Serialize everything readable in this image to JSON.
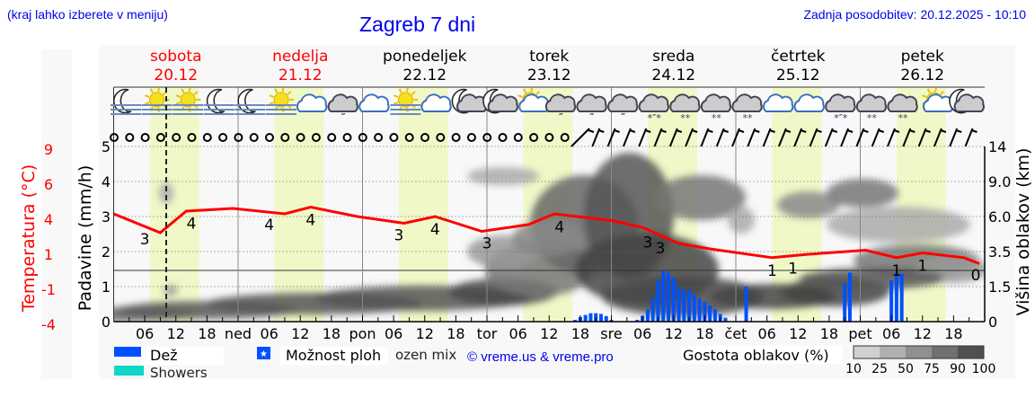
{
  "header": {
    "location_hint": "(kraj lahko izberete v meniju)",
    "title": "Zagreb 7 dni",
    "updated": "Zadnja posodobitev: 20.12.2025 - 10:10"
  },
  "days": [
    {
      "name": "sobota",
      "date": "20.12",
      "weekend": true
    },
    {
      "name": "nedelja",
      "date": "21.12",
      "weekend": true
    },
    {
      "name": "ponedeljek",
      "date": "22.12",
      "weekend": false
    },
    {
      "name": "torek",
      "date": "23.12",
      "weekend": false
    },
    {
      "name": "sreda",
      "date": "24.12",
      "weekend": false
    },
    {
      "name": "četrtek",
      "date": "25.12",
      "weekend": false
    },
    {
      "name": "petek",
      "date": "26.12",
      "weekend": false
    }
  ],
  "colors": {
    "temperature": "#ff0000",
    "rain": "#0050ff",
    "showers": "#10d8c8",
    "daylight": "#f0f8c8",
    "title": "#0000ee"
  },
  "chart_data": {
    "type": "line+bar",
    "x_tick_labels": [
      "06",
      "12",
      "18",
      "ned",
      "06",
      "12",
      "18",
      "pon",
      "06",
      "12",
      "18",
      "tor",
      "06",
      "12",
      "18",
      "sre",
      "06",
      "12",
      "18",
      "čet",
      "06",
      "12",
      "18",
      "pet",
      "06",
      "12",
      "18"
    ],
    "current_time": "20.12 10:10",
    "daylight_hours": [
      "07:00",
      "16:30"
    ],
    "temperature": {
      "axis_label": "Temperatura (°C)",
      "tick_labels": [
        "9",
        "6",
        "4",
        "1",
        "-1",
        "-4"
      ],
      "ylim": [
        -4,
        9
      ],
      "points": [
        [
          "20.12 00:00",
          4.0
        ],
        [
          "20.12 09:00",
          2.6
        ],
        [
          "20.12 14:00",
          4.2
        ],
        [
          "20.12 23:00",
          4.4
        ],
        [
          "21.12 09:00",
          4.0
        ],
        [
          "21.12 14:00",
          4.5
        ],
        [
          "21.12 23:00",
          3.8
        ],
        [
          "22.12 08:00",
          3.3
        ],
        [
          "22.12 14:00",
          3.8
        ],
        [
          "22.12 23:00",
          2.7
        ],
        [
          "23.12 08:00",
          3.2
        ],
        [
          "23.12 13:00",
          4.0
        ],
        [
          "24.12 00:00",
          3.5
        ],
        [
          "24.12 06:00",
          3.0
        ],
        [
          "24.12 13:00",
          1.8
        ],
        [
          "24.12 19:00",
          1.4
        ],
        [
          "25.12 07:00",
          0.75
        ],
        [
          "25.12 14:00",
          1.0
        ],
        [
          "26.12 01:00",
          1.3
        ],
        [
          "26.12 07:00",
          0.75
        ],
        [
          "26.12 12:00",
          1.1
        ],
        [
          "26.12 20:00",
          0.75
        ],
        [
          "26.12 23:00",
          0.3
        ]
      ],
      "labels": [
        [
          "20.12 06:00",
          "3"
        ],
        [
          "20.12 15:00",
          "4"
        ],
        [
          "21.12 06:00",
          "4"
        ],
        [
          "21.12 14:00",
          "4"
        ],
        [
          "22.12 07:00",
          "3"
        ],
        [
          "22.12 14:00",
          "4"
        ],
        [
          "23.12 00:00",
          "3"
        ],
        [
          "23.12 14:00",
          "4"
        ],
        [
          "24.12 07:00",
          "3"
        ],
        [
          "24.12 08:00",
          "3"
        ],
        [
          "25.12 07:00",
          "1"
        ],
        [
          "25.12 11:00",
          "1"
        ],
        [
          "26.12 07:00",
          "1"
        ],
        [
          "26.12 12:00",
          "1"
        ],
        [
          "26.12 23:30",
          "0"
        ]
      ]
    },
    "precipitation": {
      "axis_label": "Padavine (mm/h)",
      "tick_labels": [
        "0",
        "1",
        "2",
        "3",
        "4",
        "5"
      ],
      "ylim": [
        0,
        5
      ],
      "rain": [
        [
          "23.12 17:00",
          0.05
        ],
        [
          "23.12 18:00",
          0.13
        ],
        [
          "23.12 19:00",
          0.19
        ],
        [
          "23.12 20:00",
          0.24
        ],
        [
          "23.12 21:00",
          0.24
        ],
        [
          "23.12 22:00",
          0.22
        ],
        [
          "23.12 23:00",
          0.16
        ],
        [
          "24.12 00:00",
          0.05
        ],
        [
          "24.12 05:00",
          0.05
        ],
        [
          "24.12 06:00",
          0.16
        ],
        [
          "24.12 07:00",
          0.35
        ],
        [
          "24.12 08:00",
          0.7
        ],
        [
          "24.12 09:00",
          1.18
        ],
        [
          "24.12 10:00",
          1.45
        ],
        [
          "24.12 11:00",
          1.4
        ],
        [
          "24.12 12:00",
          1.26
        ],
        [
          "24.12 13:00",
          1.0
        ],
        [
          "24.12 14:00",
          0.91
        ],
        [
          "24.12 15:00",
          0.91
        ],
        [
          "24.12 16:00",
          0.78
        ],
        [
          "24.12 17:00",
          0.67
        ],
        [
          "24.12 18:00",
          0.56
        ],
        [
          "24.12 19:00",
          0.46
        ],
        [
          "24.12 20:00",
          0.35
        ],
        [
          "24.12 21:00",
          0.22
        ],
        [
          "24.12 22:00",
          0.11
        ],
        [
          "25.12 02:00",
          1.0
        ],
        [
          "25.12 21:00",
          1.1
        ],
        [
          "25.12 22:00",
          1.4
        ],
        [
          "26.12 06:00",
          1.18
        ],
        [
          "26.12 07:00",
          1.4
        ],
        [
          "26.12 08:00",
          1.37
        ]
      ]
    },
    "cloud_height": {
      "axis_label": "Višina oblakov (km)",
      "tick_labels": [
        "0",
        "1.5",
        "3.5",
        "6.0",
        "9.0",
        "14"
      ]
    },
    "weather_icons": [
      "moon-fog",
      "sun-fog",
      "sun-fog",
      "moon-fog",
      "moon-fog",
      "sun-fog",
      "cloud",
      "cloud-drizzle",
      "cloud",
      "sun-fog",
      "cloud",
      "moon-cloud",
      "moon-cloud",
      "sun-cloud",
      "cloud-drizzle",
      "cloud-drizzle",
      "cloud-drizzle",
      "cloud-sleet",
      "cloud-snow",
      "cloud-snow",
      "cloud-snow",
      "cloud",
      "cloud",
      "cloud-sleet",
      "cloud-snow",
      "cloud-snow",
      "sun-cloud",
      "moon-cloud"
    ],
    "wind_calm_count": 30,
    "wind_total_count": 56
  },
  "legend": {
    "rain": "Dež",
    "showers": "Showers",
    "possible_showers": "Možnost ploh",
    "frozen_mix": "ozen mix",
    "credit": "© vreme.us & vreme.pro",
    "cloud_density_title": "Gostota oblakov (%)",
    "cloud_density_levels": [
      "10",
      "25",
      "50",
      "75",
      "90",
      "100"
    ],
    "cloud_density_colors": [
      "#d0d0d0",
      "#b0b0b0",
      "#909090",
      "#707070",
      "#505050"
    ]
  }
}
